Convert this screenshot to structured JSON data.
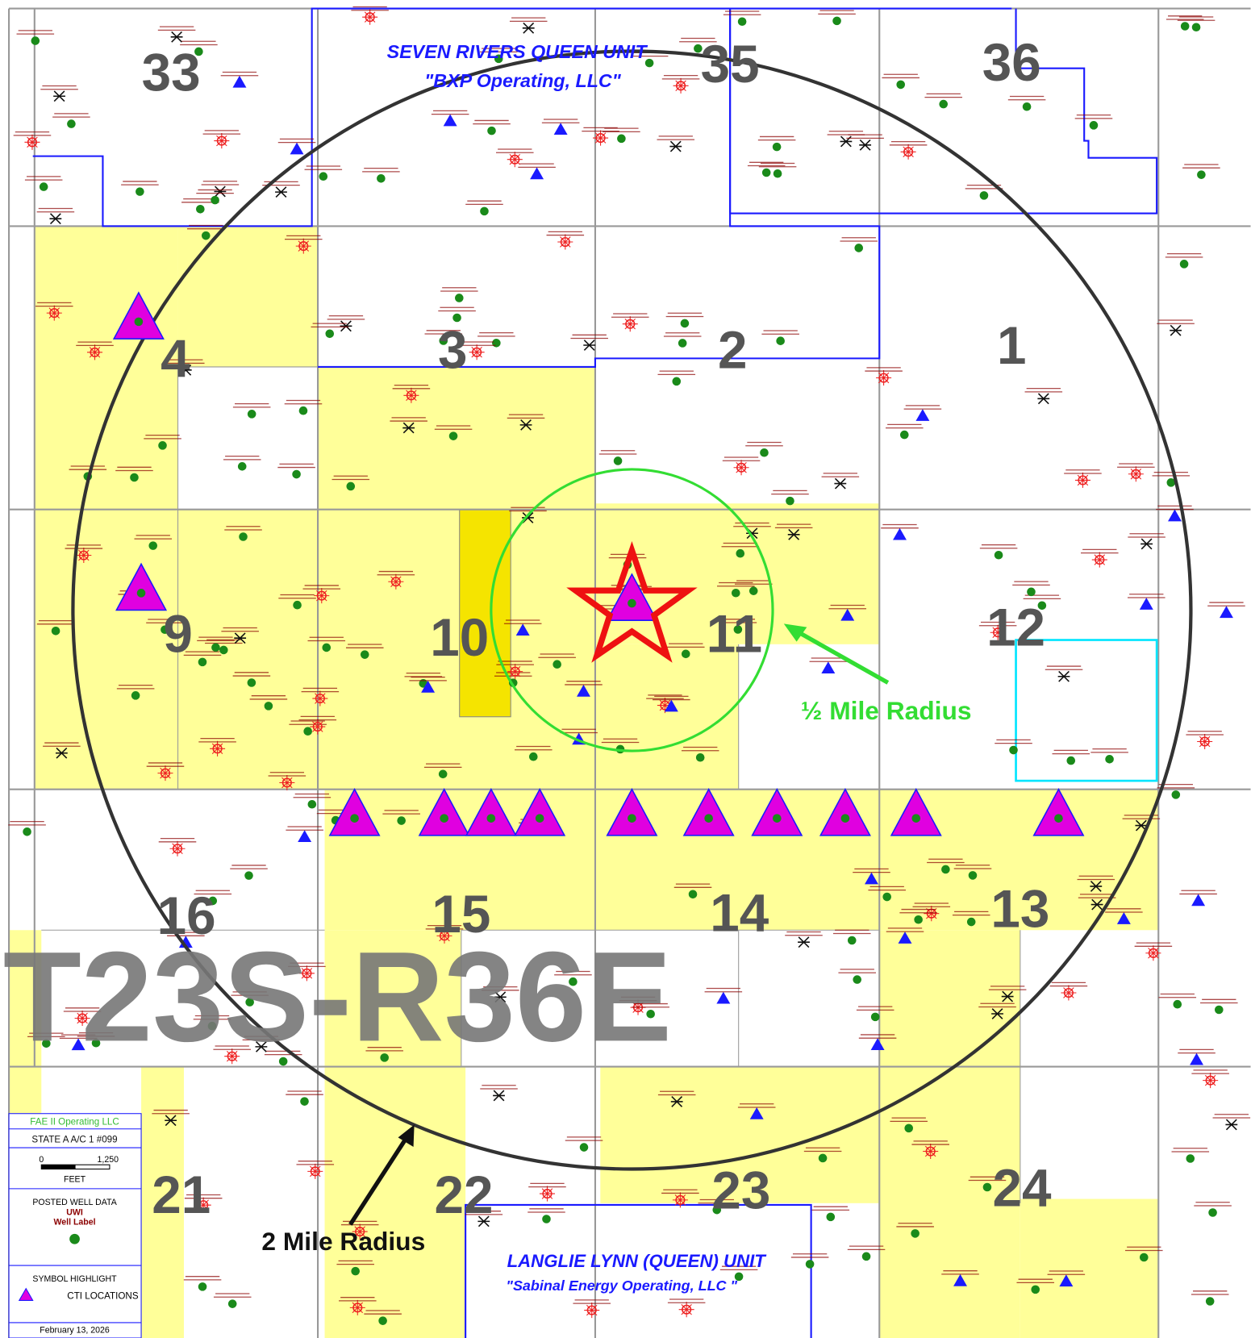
{
  "map": {
    "township": "T23S-R36E",
    "sections": [
      "33",
      "35",
      "36",
      "4",
      "3",
      "2",
      "1",
      "9",
      "10",
      "11",
      "12",
      "16",
      "15",
      "14",
      "13",
      "21",
      "22",
      "23",
      "24"
    ],
    "units": [
      {
        "name": "SEVEN RIVERS QUEEN UNIT",
        "operator": "\"BXP Operating, LLC\""
      },
      {
        "name": "LANGLIE LYNN (QUEEN) UNIT",
        "operator": "\"Sabinal Energy Operating, LLC \""
      }
    ],
    "radii": [
      "½ Mile Radius",
      "2 Mile Radius"
    ],
    "legend": {
      "operator": "FAE II Operating LLC",
      "well": "STATE A A/C 1 #099",
      "scale_zero": "0",
      "scale_end": "1,250",
      "scale_unit": "FEET",
      "posted_title": "POSTED WELL DATA",
      "uwi": "UWI",
      "well_label": "Well Label",
      "symbol_title": "SYMBOL HIGHLIGHT",
      "cti": "CTI LOCATIONS",
      "date": "February 13, 2026"
    }
  }
}
